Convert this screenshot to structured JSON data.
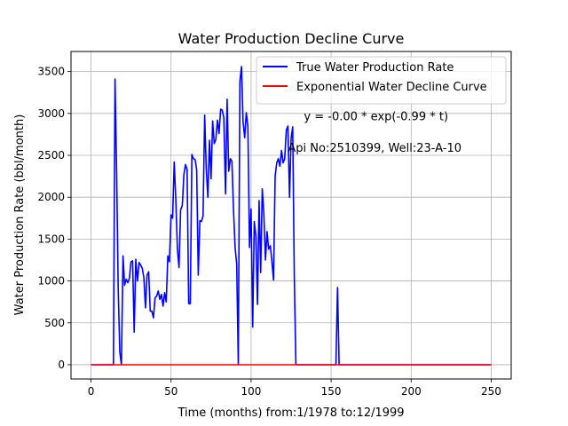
{
  "chart_data": {
    "type": "line",
    "title": "Water Production Decline Curve",
    "xlabel": "Time (months) from:1/1978 to:12/1999",
    "ylabel": "Water Production Rate (bbl/month)",
    "xlim": [
      -12.5,
      262.5
    ],
    "ylim": [
      -170,
      3740
    ],
    "xticks": [
      0,
      50,
      100,
      150,
      200,
      250
    ],
    "yticks": [
      0,
      500,
      1000,
      1500,
      2000,
      2500,
      3000,
      3500
    ],
    "grid": true,
    "legend": "top-right",
    "annotations": [
      {
        "text": "y = -0.00 * exp(-0.99 * t)",
        "x": 133,
        "y": 2920
      },
      {
        "text": "Api No:2510399, Well:23-A-10",
        "x": 123,
        "y": 2540
      }
    ],
    "series": [
      {
        "name": "True Water Production Rate",
        "color": "#0000ff",
        "points": [
          [
            0,
            0
          ],
          [
            14,
            0
          ],
          [
            15,
            3410
          ],
          [
            16,
            2300
          ],
          [
            17,
            900
          ],
          [
            18,
            150
          ],
          [
            19,
            0
          ],
          [
            20,
            1300
          ],
          [
            21,
            950
          ],
          [
            22,
            1020
          ],
          [
            23,
            980
          ],
          [
            24,
            1030
          ],
          [
            25,
            1230
          ],
          [
            26,
            1240
          ],
          [
            27,
            390
          ],
          [
            28,
            1260
          ],
          [
            29,
            1000
          ],
          [
            30,
            1220
          ],
          [
            31,
            1190
          ],
          [
            32,
            1150
          ],
          [
            33,
            1040
          ],
          [
            34,
            680
          ],
          [
            35,
            1070
          ],
          [
            36,
            1110
          ],
          [
            37,
            640
          ],
          [
            38,
            640
          ],
          [
            39,
            560
          ],
          [
            40,
            800
          ],
          [
            41,
            820
          ],
          [
            42,
            880
          ],
          [
            43,
            780
          ],
          [
            44,
            840
          ],
          [
            45,
            700
          ],
          [
            46,
            860
          ],
          [
            47,
            750
          ],
          [
            48,
            1300
          ],
          [
            49,
            1230
          ],
          [
            50,
            1790
          ],
          [
            51,
            1750
          ],
          [
            52,
            2420
          ],
          [
            53,
            1970
          ],
          [
            54,
            1380
          ],
          [
            55,
            1160
          ],
          [
            56,
            1850
          ],
          [
            57,
            1900
          ],
          [
            58,
            2270
          ],
          [
            59,
            2390
          ],
          [
            60,
            2330
          ],
          [
            61,
            730
          ],
          [
            62,
            730
          ],
          [
            63,
            2510
          ],
          [
            64,
            2460
          ],
          [
            65,
            2450
          ],
          [
            66,
            2330
          ],
          [
            67,
            1070
          ],
          [
            68,
            1720
          ],
          [
            69,
            1710
          ],
          [
            70,
            1780
          ],
          [
            71,
            2980
          ],
          [
            72,
            2340
          ],
          [
            73,
            2000
          ],
          [
            74,
            2680
          ],
          [
            75,
            2220
          ],
          [
            76,
            2910
          ],
          [
            77,
            2640
          ],
          [
            78,
            2690
          ],
          [
            79,
            2920
          ],
          [
            80,
            2760
          ],
          [
            81,
            3050
          ],
          [
            82,
            3040
          ],
          [
            83,
            2950
          ],
          [
            84,
            2040
          ],
          [
            85,
            3170
          ],
          [
            86,
            2310
          ],
          [
            87,
            2460
          ],
          [
            88,
            2430
          ],
          [
            89,
            1850
          ],
          [
            90,
            1400
          ],
          [
            91,
            1200
          ],
          [
            92,
            0
          ],
          [
            93,
            3380
          ],
          [
            94,
            3560
          ],
          [
            95,
            2900
          ],
          [
            96,
            2710
          ],
          [
            97,
            3010
          ],
          [
            98,
            2850
          ],
          [
            99,
            1400
          ],
          [
            100,
            1860
          ],
          [
            101,
            450
          ],
          [
            102,
            1710
          ],
          [
            103,
            1540
          ],
          [
            104,
            720
          ],
          [
            105,
            1960
          ],
          [
            106,
            1100
          ],
          [
            107,
            2100
          ],
          [
            108,
            1800
          ],
          [
            109,
            1250
          ],
          [
            110,
            1590
          ],
          [
            111,
            1380
          ],
          [
            112,
            1420
          ],
          [
            113,
            1230
          ],
          [
            114,
            1010
          ],
          [
            115,
            2250
          ],
          [
            116,
            2410
          ],
          [
            117,
            2460
          ],
          [
            118,
            2370
          ],
          [
            119,
            2560
          ],
          [
            120,
            2410
          ],
          [
            121,
            2460
          ],
          [
            122,
            2800
          ],
          [
            123,
            2850
          ],
          [
            124,
            2000
          ],
          [
            125,
            2700
          ],
          [
            126,
            2840
          ],
          [
            127,
            1050
          ],
          [
            128,
            0
          ],
          [
            140,
            0
          ],
          [
            153,
            0
          ],
          [
            154,
            920
          ],
          [
            155,
            0
          ],
          [
            250,
            0
          ]
        ]
      },
      {
        "name": "Exponential Water Decline Curve",
        "color": "#ff0000",
        "points": [
          [
            0,
            0
          ],
          [
            250,
            0
          ]
        ]
      }
    ]
  }
}
